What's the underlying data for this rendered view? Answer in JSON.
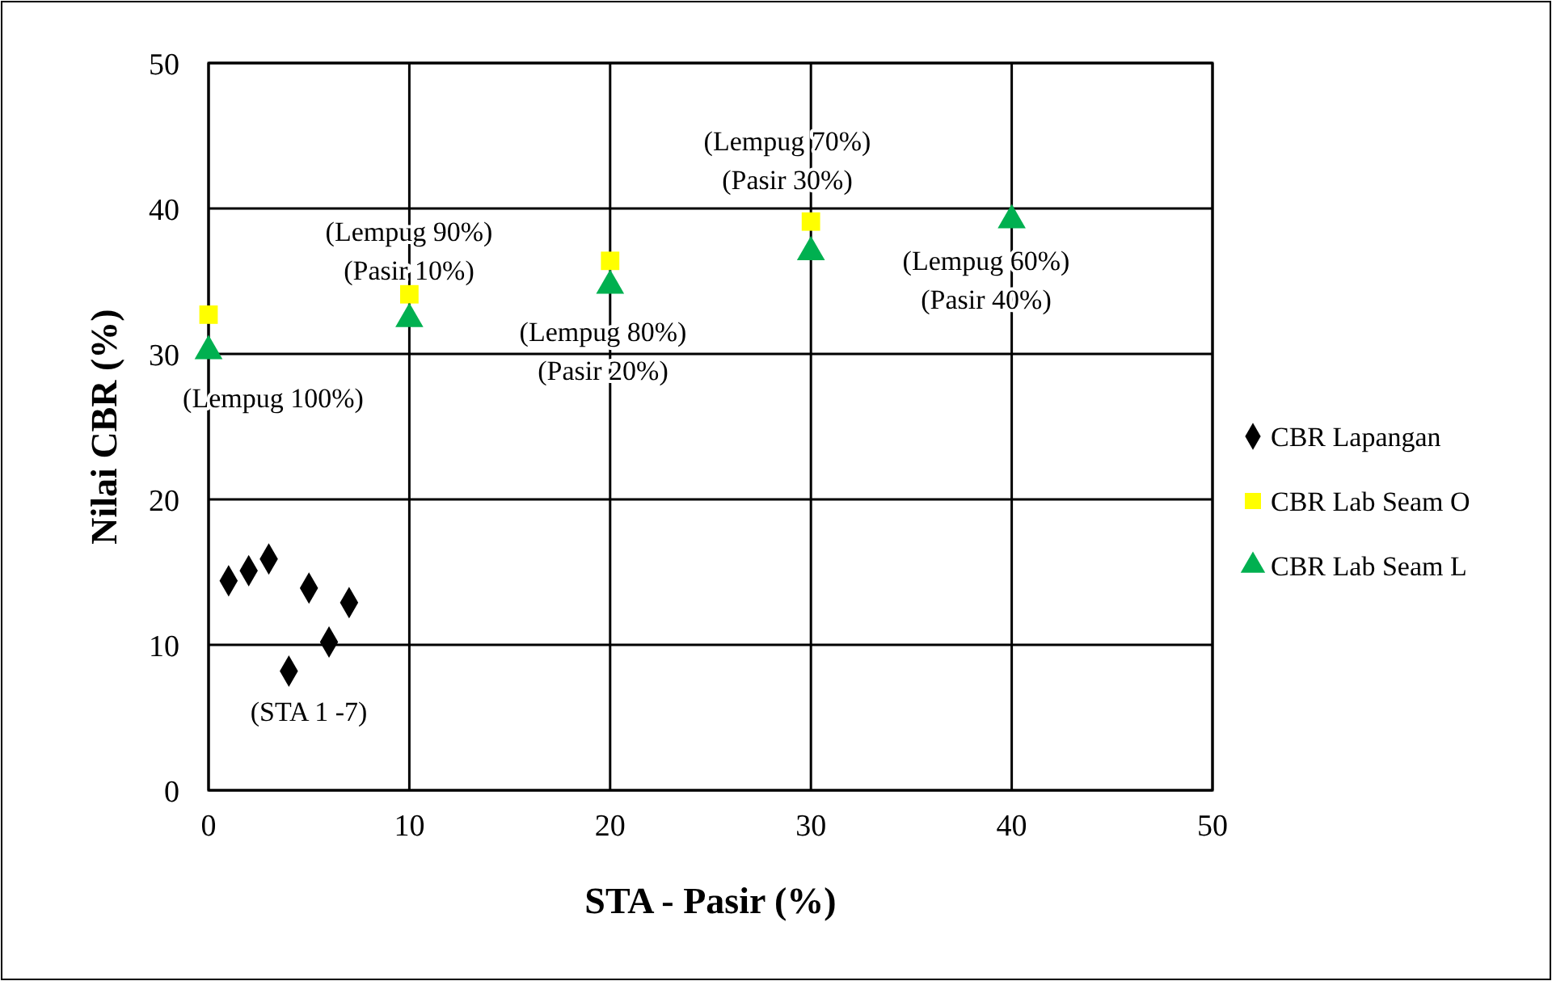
{
  "chart_data": {
    "type": "scatter",
    "xlabel": "STA - Pasir (%)",
    "ylabel": "Nilai CBR (%)",
    "xlim": [
      0,
      50
    ],
    "ylim": [
      0,
      50
    ],
    "xticks": [
      0,
      10,
      20,
      30,
      40,
      50
    ],
    "yticks": [
      0,
      10,
      20,
      30,
      40,
      50
    ],
    "grid": true,
    "legend": "right",
    "series": [
      {
        "name": "CBR Lapangan",
        "color": "#000000",
        "marker": "diamond",
        "x": [
          1,
          2,
          3,
          4,
          5,
          6,
          7
        ],
        "values": [
          14.4,
          15.1,
          15.9,
          8.2,
          13.9,
          10.2,
          12.9
        ]
      },
      {
        "name": "CBR Lab Seam O",
        "color": "#ffff00",
        "marker": "square",
        "x": [
          0,
          10,
          20,
          30
        ],
        "values": [
          32.7,
          34.1,
          36.4,
          39.1
        ]
      },
      {
        "name": "CBR Lab Seam L",
        "color": "#00b050",
        "marker": "triangle",
        "x": [
          0,
          10,
          20,
          30,
          40
        ],
        "values": [
          30.2,
          32.4,
          34.7,
          37.0,
          39.2
        ]
      }
    ],
    "annotations": [
      "(Lempug 100%)",
      "(Lempug 90%)\n(Pasir 10%)",
      "(Lempug 80%)\n(Pasir 20%)",
      "(Lempug 70%)\n(Pasir 30%)",
      "(Lempug 60%)\n(Pasir 40%)",
      "(STA 1 -7)"
    ]
  }
}
